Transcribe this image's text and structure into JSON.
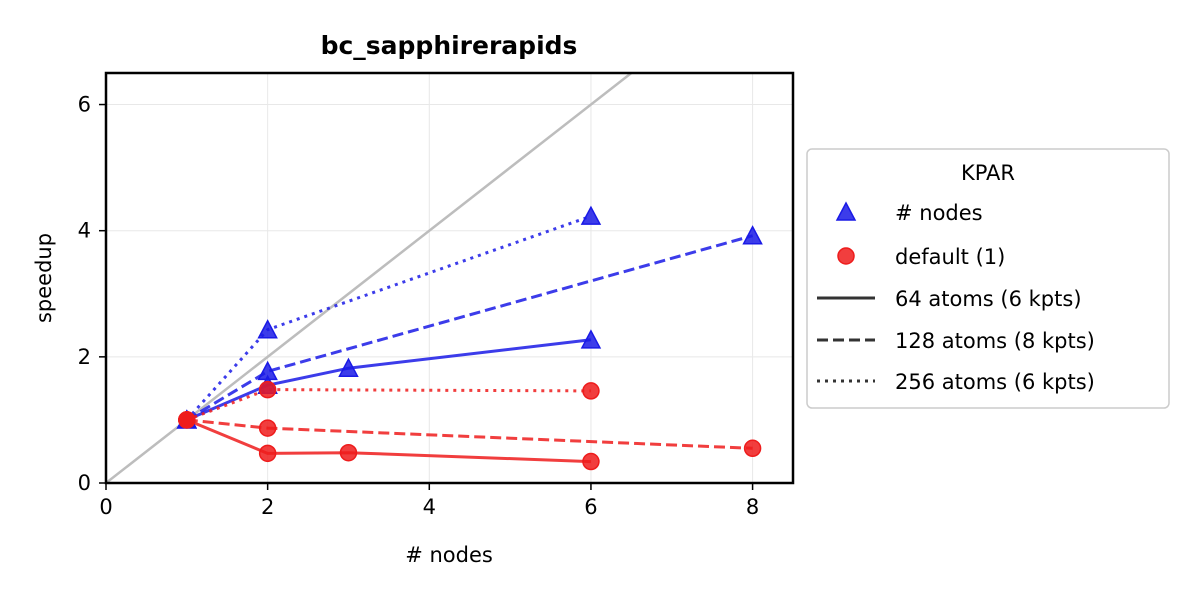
{
  "chart_data": {
    "type": "line",
    "title": "bc_sapphirerapids",
    "xlabel": "# nodes",
    "ylabel": "speedup",
    "xlim": [
      0,
      8.5
    ],
    "ylim": [
      0,
      6.5
    ],
    "xticks": [
      0,
      2,
      4,
      6,
      8
    ],
    "yticks": [
      0,
      2,
      4,
      6
    ],
    "grid": true,
    "reference_line": "ideal speedup (y = x)",
    "legend": {
      "title": "KPAR",
      "placement": "outside-right",
      "entries": [
        {
          "label": "# nodes",
          "marker": "triangle",
          "color": "#1a1ae6"
        },
        {
          "label": "default (1)",
          "marker": "circle",
          "color": "#ee1c1c"
        },
        {
          "label": "64 atoms (6 kpts)",
          "linestyle": "solid"
        },
        {
          "label": "128 atoms (8 kpts)",
          "linestyle": "dashed"
        },
        {
          "label": "256 atoms (6 kpts)",
          "linestyle": "dotted"
        }
      ]
    },
    "colors": {
      "nodes": "#1a1ae6",
      "default": "#ee1c1c",
      "ideal": "#bdbdbd"
    },
    "series": [
      {
        "kpar": "# nodes",
        "atoms": "64 atoms (6 kpts)",
        "linestyle": "solid",
        "x": [
          1,
          2,
          3,
          6
        ],
        "y": [
          1.0,
          1.55,
          1.82,
          2.27
        ]
      },
      {
        "kpar": "# nodes",
        "atoms": "128 atoms (8 kpts)",
        "linestyle": "dashed",
        "x": [
          1,
          2,
          8
        ],
        "y": [
          1.0,
          1.77,
          3.92
        ]
      },
      {
        "kpar": "# nodes",
        "atoms": "256 atoms (6 kpts)",
        "linestyle": "dotted",
        "x": [
          1,
          2,
          6
        ],
        "y": [
          1.0,
          2.43,
          4.23
        ]
      },
      {
        "kpar": "default (1)",
        "atoms": "64 atoms (6 kpts)",
        "linestyle": "solid",
        "x": [
          1,
          2,
          3,
          6
        ],
        "y": [
          1.0,
          0.47,
          0.48,
          0.34
        ]
      },
      {
        "kpar": "default (1)",
        "atoms": "128 atoms (8 kpts)",
        "linestyle": "dashed",
        "x": [
          1,
          2,
          8
        ],
        "y": [
          1.0,
          0.87,
          0.55
        ]
      },
      {
        "kpar": "default (1)",
        "atoms": "256 atoms (6 kpts)",
        "linestyle": "dotted",
        "x": [
          1,
          2,
          6
        ],
        "y": [
          1.0,
          1.48,
          1.46
        ]
      }
    ]
  }
}
